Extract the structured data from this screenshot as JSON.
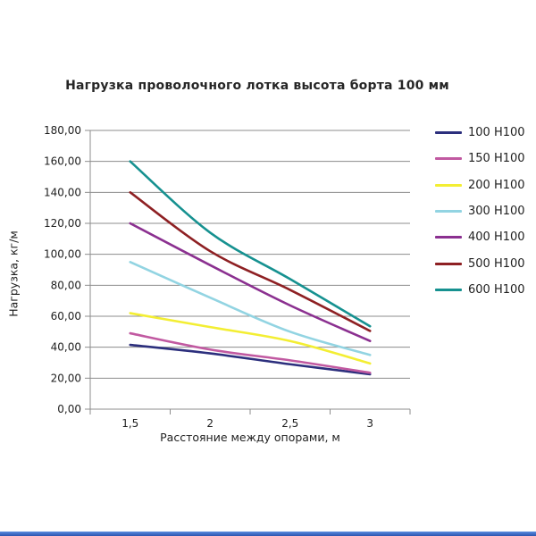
{
  "chart_data": {
    "type": "line",
    "title": "Нагрузка проволочного лотка высота борта 100 мм",
    "xlabel": "Расстояние между опорами, м",
    "ylabel": "Нагрузка, кг/м",
    "x": [
      1.5,
      2,
      2.5,
      3
    ],
    "x_tick_labels": [
      "1,5",
      "2",
      "2,5",
      "3"
    ],
    "y_ticks": [
      0,
      20,
      40,
      60,
      80,
      100,
      120,
      140,
      160,
      180
    ],
    "y_tick_labels": [
      "0,00",
      "20,00",
      "40,00",
      "60,00",
      "80,00",
      "100,00",
      "120,00",
      "140,00",
      "160,00",
      "180,00"
    ],
    "ylim": [
      0,
      180
    ],
    "grid": "horizontal-only",
    "legend_position": "right",
    "line_style": "smooth",
    "axis_color": "#8c8c8c",
    "series": [
      {
        "name": "100 Н100",
        "color": "#2c2f7d",
        "values": [
          41.5,
          36.0,
          29.0,
          22.5
        ]
      },
      {
        "name": "150 Н100",
        "color": "#c159a1",
        "values": [
          49.0,
          38.5,
          31.5,
          23.5
        ]
      },
      {
        "name": "200 Н100",
        "color": "#f3ee33",
        "values": [
          62.0,
          53.0,
          44.0,
          29.5
        ]
      },
      {
        "name": "300 Н100",
        "color": "#92d4e2",
        "values": [
          95.0,
          72.0,
          50.0,
          35.0
        ]
      },
      {
        "name": "400 Н100",
        "color": "#8b3090",
        "values": [
          120.0,
          93.0,
          67.0,
          44.0
        ]
      },
      {
        "name": "500 Н100",
        "color": "#8e2023",
        "values": [
          140.0,
          102.0,
          77.0,
          50.5
        ]
      },
      {
        "name": "600 Н100",
        "color": "#169190",
        "values": [
          160.0,
          114.0,
          84.0,
          53.5
        ]
      }
    ]
  }
}
